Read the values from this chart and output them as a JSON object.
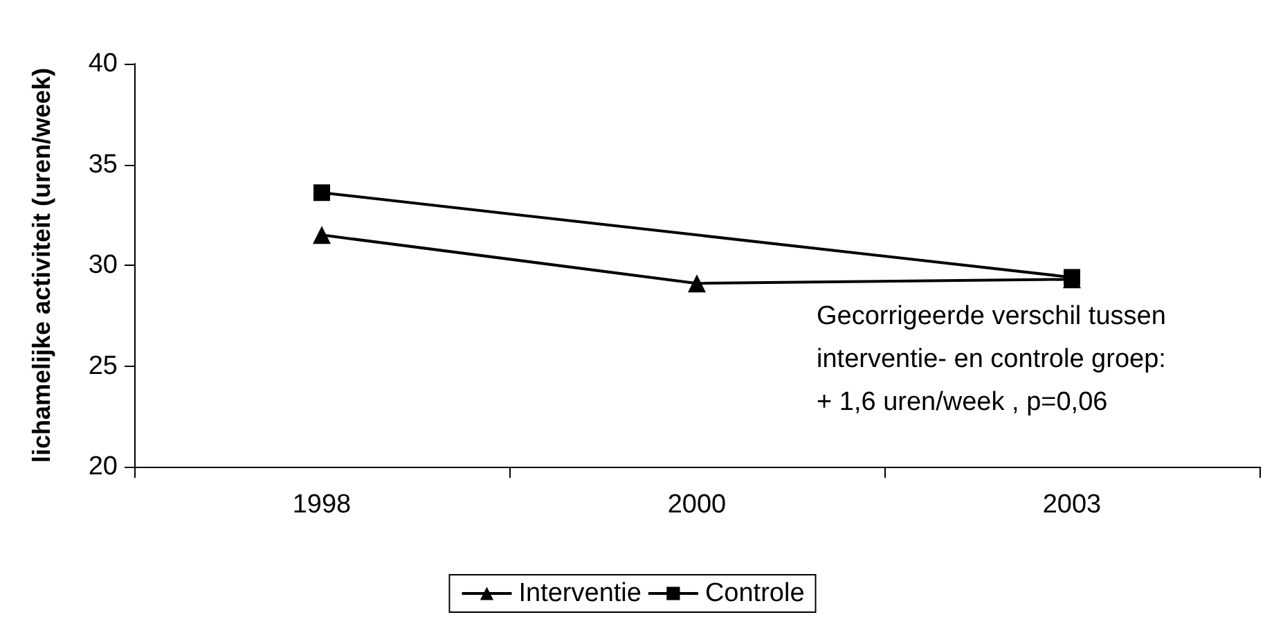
{
  "chart_data": {
    "type": "line",
    "ylabel": "lichamelijke activiteit (uren/week)",
    "categories": [
      "1998",
      "2000",
      "2003"
    ],
    "series": [
      {
        "name": "Interventie",
        "color": "#000000",
        "marker": "triangle",
        "values": [
          31.5,
          29.1,
          29.3
        ]
      },
      {
        "name": "Controle",
        "color": "#000000",
        "marker": "square",
        "values": [
          33.6,
          null,
          29.4
        ]
      }
    ],
    "ylim": [
      20,
      40
    ],
    "yticks": [
      20,
      25,
      30,
      35,
      40
    ],
    "grid": false,
    "legend": "bottom",
    "line_style": "solid",
    "annotations": [
      "Gecorrigeerde verschil tussen\ninterventie- en controle groep:\n+ 1,6 uren/week , p=0,06"
    ]
  }
}
